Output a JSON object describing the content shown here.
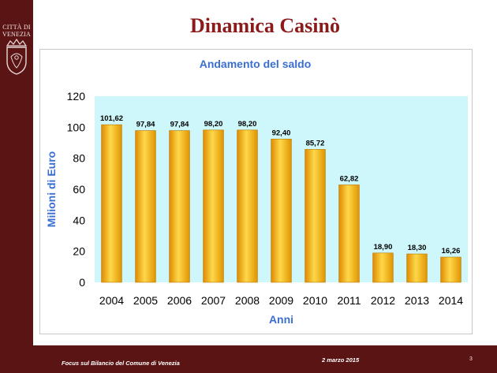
{
  "slide": {
    "title": "Dinamica Casinò",
    "crest_text": "CITTÀ DI VENEZIA",
    "footer_left": "Focus sul Bilancio del Comune di Venezia",
    "footer_date": "2 marzo 2015",
    "page_number": "3"
  },
  "colors": {
    "sidebar": "#5a1414",
    "title": "#8b1a1a",
    "plot_bg": "#cdf7fb",
    "bar_fill": "#f5a800",
    "bar_highlight": "#ffe070",
    "axis_label": "#3a6fd0"
  },
  "chart_data": {
    "type": "bar",
    "title": "Andamento del saldo",
    "xlabel": "Anni",
    "ylabel": "Milioni di Euro",
    "categories": [
      "2004",
      "2005",
      "2006",
      "2007",
      "2008",
      "2009",
      "2010",
      "2011",
      "2012",
      "2013",
      "2014"
    ],
    "values": [
      101.62,
      97.84,
      97.84,
      98.2,
      98.2,
      92.4,
      85.72,
      62.82,
      18.9,
      18.3,
      16.26
    ],
    "value_labels": [
      "101,62",
      "97,84",
      "97,84",
      "98,20",
      "98,20",
      "92,40",
      "85,72",
      "62,82",
      "18,90",
      "18,30",
      "16,26"
    ],
    "ylim": [
      0,
      120
    ],
    "yticks": [
      "0",
      "20",
      "40",
      "60",
      "80",
      "100",
      "120"
    ],
    "grid": false,
    "legend": "none"
  }
}
